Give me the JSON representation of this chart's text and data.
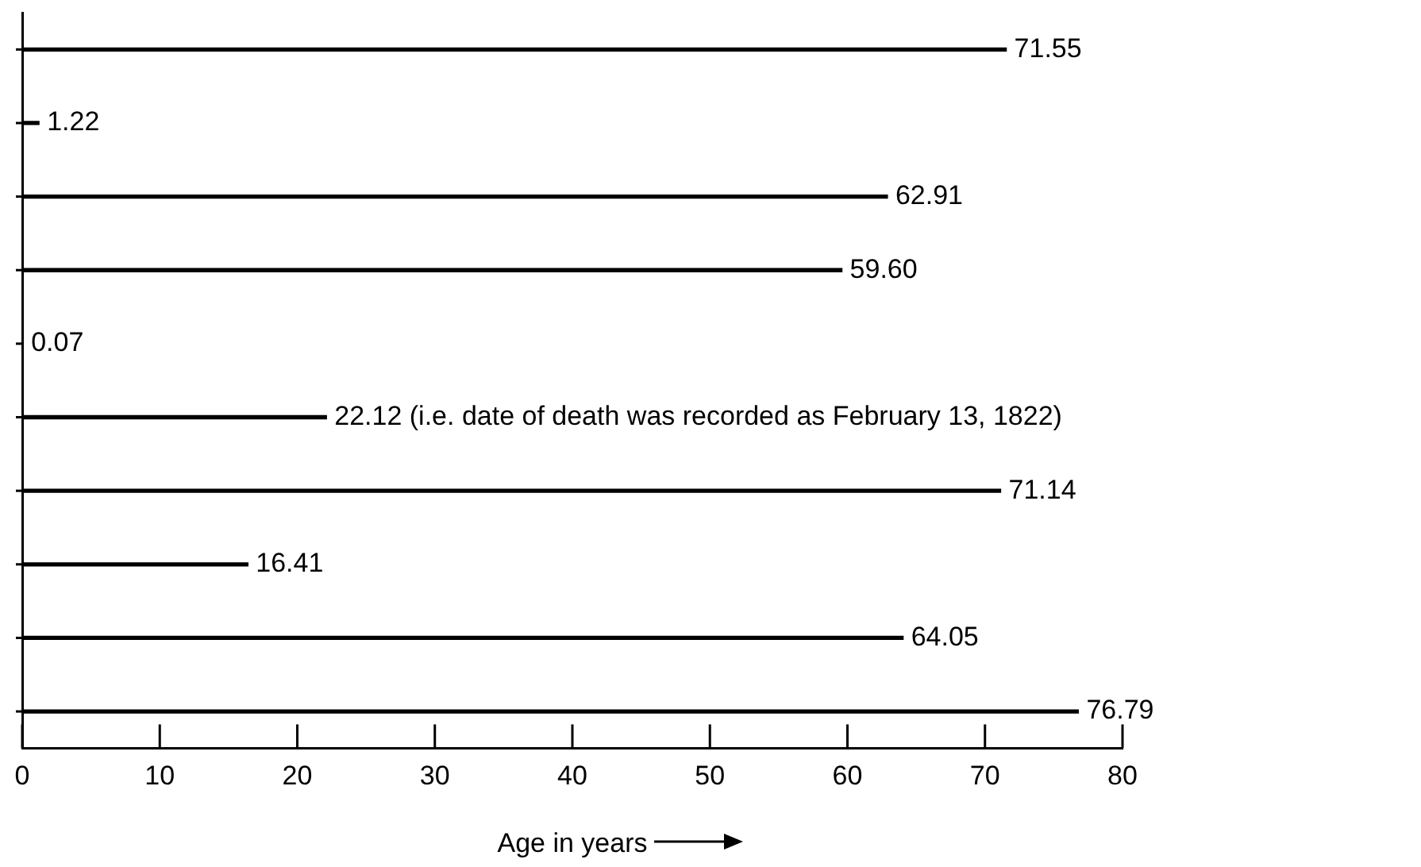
{
  "chart_data": {
    "type": "bar",
    "orientation": "horizontal",
    "categories": [
      null,
      null,
      null,
      null,
      null,
      null,
      null,
      null,
      null,
      null
    ],
    "values": [
      71.55,
      1.22,
      62.91,
      59.6,
      0.07,
      22.12,
      71.14,
      16.41,
      64.05,
      76.79
    ],
    "value_labels": [
      "71.55",
      "1.22",
      "62.91",
      "59.60",
      "0.07",
      "22.12 (i.e. date of death was recorded as February 13, 1822)",
      "71.14",
      "16.41",
      "64.05",
      "76.79"
    ],
    "color": "#000000",
    "xlim": [
      0,
      80
    ],
    "xticks": [
      0,
      10,
      20,
      30,
      40,
      50,
      60,
      70,
      80
    ],
    "xlabel": "Age in years"
  }
}
